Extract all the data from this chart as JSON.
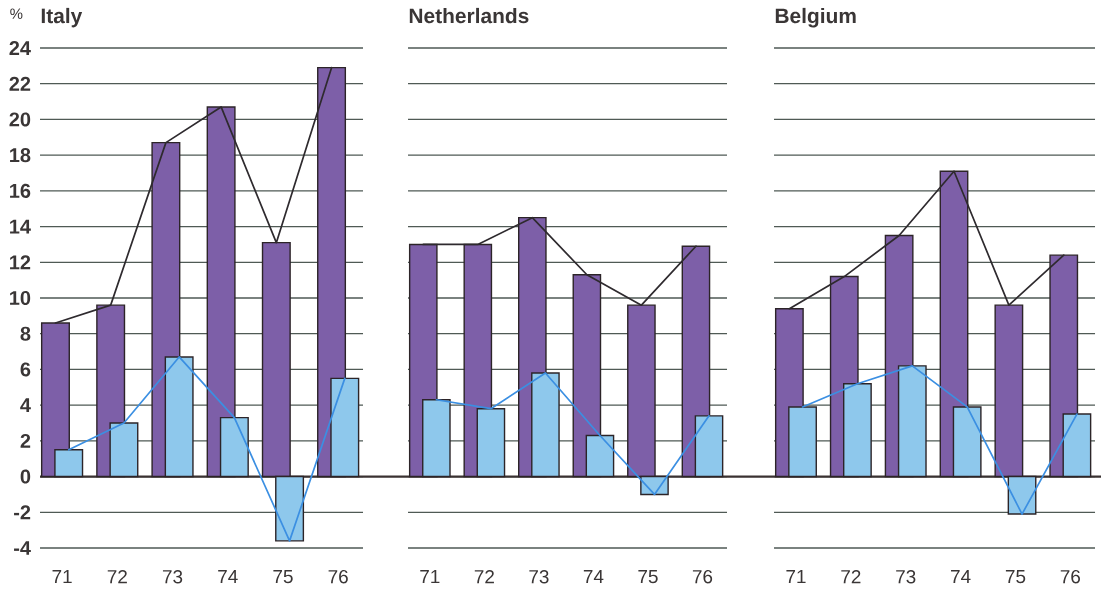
{
  "chart_data": [
    {
      "type": "bar",
      "title": "Italy",
      "ylabel": "%",
      "categories": [
        "71",
        "72",
        "73",
        "74",
        "75",
        "76"
      ],
      "ylim": [
        -4,
        24
      ],
      "yticks": [
        -4,
        -2,
        0,
        2,
        4,
        6,
        8,
        10,
        12,
        14,
        16,
        18,
        20,
        22,
        24
      ],
      "grid": "y",
      "series": [
        {
          "color": "#7d5fa8",
          "values": [
            8.6,
            9.6,
            18.7,
            20.7,
            13.1,
            22.9
          ]
        },
        {
          "color": "#8ec8ec",
          "values": [
            1.5,
            3.0,
            6.7,
            3.3,
            -3.6,
            5.5
          ]
        },
        {
          "type": "line",
          "color": "#2e2a2e",
          "values": [
            8.6,
            9.6,
            18.7,
            20.7,
            13.1,
            22.9
          ]
        },
        {
          "type": "line",
          "color": "#3b8fe2",
          "values": [
            1.5,
            3.0,
            6.7,
            3.3,
            -3.6,
            5.5
          ]
        }
      ]
    },
    {
      "type": "bar",
      "title": "Netherlands",
      "categories": [
        "71",
        "72",
        "73",
        "74",
        "75",
        "76"
      ],
      "ylim": [
        -4,
        24
      ],
      "yticks": [
        -4,
        -2,
        0,
        2,
        4,
        6,
        8,
        10,
        12,
        14,
        16,
        18,
        20,
        22,
        24
      ],
      "grid": "y",
      "tick_labels": "x",
      "series": [
        {
          "color": "#7d5fa8",
          "values": [
            13.0,
            13.0,
            14.5,
            11.3,
            9.6,
            12.9
          ]
        },
        {
          "color": "#8ec8ec",
          "values": [
            4.3,
            3.8,
            5.8,
            2.3,
            -1.0,
            3.4
          ]
        },
        {
          "type": "line",
          "color": "#2e2a2e",
          "values": [
            13.0,
            13.0,
            14.5,
            11.3,
            9.6,
            12.9
          ]
        },
        {
          "type": "line",
          "color": "#3b8fe2",
          "values": [
            4.3,
            3.8,
            5.8,
            2.3,
            -1.0,
            3.4
          ]
        }
      ]
    },
    {
      "type": "bar",
      "title": "Belgium",
      "categories": [
        "71",
        "72",
        "73",
        "74",
        "75",
        "76"
      ],
      "ylim": [
        -4,
        24
      ],
      "yticks": [
        -4,
        -2,
        0,
        2,
        4,
        6,
        8,
        10,
        12,
        14,
        16,
        18,
        20,
        22,
        24
      ],
      "grid": "y",
      "tick_labels": "x",
      "series": [
        {
          "color": "#7d5fa8",
          "values": [
            9.4,
            11.2,
            13.5,
            17.1,
            9.6,
            12.4
          ]
        },
        {
          "color": "#8ec8ec",
          "values": [
            3.9,
            5.2,
            6.2,
            3.9,
            -2.1,
            3.5
          ]
        },
        {
          "type": "line",
          "color": "#2e2a2e",
          "values": [
            9.4,
            11.2,
            13.5,
            17.1,
            9.6,
            12.4
          ]
        },
        {
          "type": "line",
          "color": "#3b8fe2",
          "values": [
            3.9,
            5.2,
            6.2,
            3.9,
            -2.1,
            3.5
          ]
        }
      ]
    }
  ]
}
